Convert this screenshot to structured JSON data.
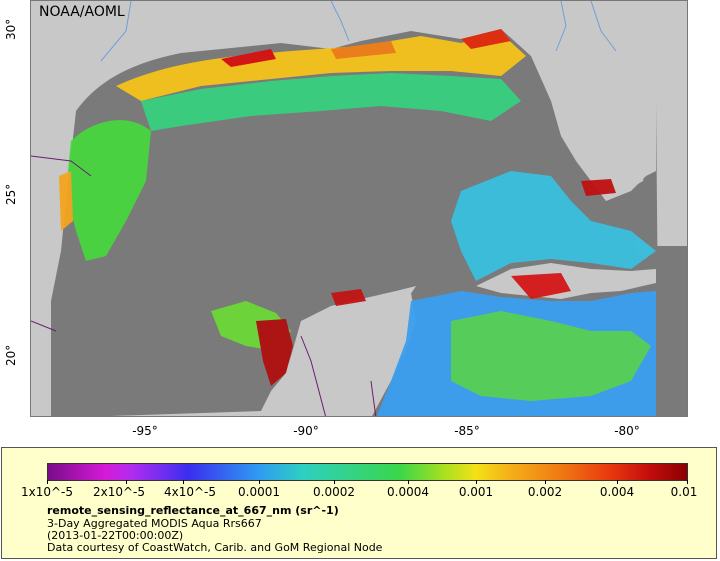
{
  "map": {
    "credit": "NOAA/AOML",
    "y_ticks": [
      "30°",
      "25°",
      "20°"
    ],
    "x_ticks": [
      "-95°",
      "-90°",
      "-85°",
      "-80°"
    ]
  },
  "legend": {
    "colorbar_labels": [
      "1x10^-5",
      "2x10^-5",
      "4x10^-5",
      "0.0001",
      "0.0002",
      "0.0004",
      "0.001",
      "0.002",
      "0.004",
      "0.01"
    ],
    "title": "remote_sensing_reflectance_at_667_nm (sr^-1)",
    "line1": "3-Day Aggregated MODIS Aqua Rrs667",
    "line2": "(2013-01-22T00:00:00Z)",
    "line3": "Data courtesy of CoastWatch, Carib. and GoM Regional Node"
  },
  "colors": {
    "land": "#c8c8c8",
    "no_data_ocean": "#7a7a7a",
    "legend_bg": "#ffffcc",
    "borders": "#6b1f6b",
    "rivers": "#6fa0d8"
  }
}
